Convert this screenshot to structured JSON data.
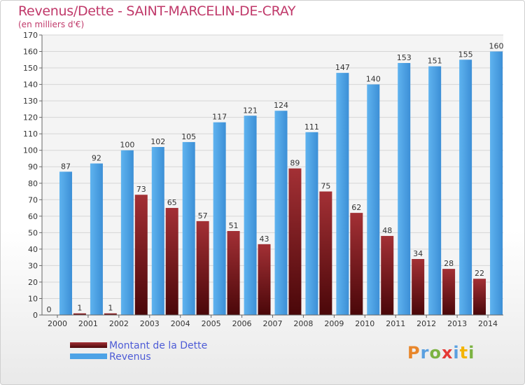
{
  "title": "Revenus/Dette - SAINT-MARCELIN-DE-CRAY",
  "subtitle": "(en milliers d'€)",
  "logo": {
    "text": "Proxiti",
    "colors": [
      "#e8862a",
      "#5aa0e0",
      "#7cb342",
      "#e53935",
      "#5aa0e0",
      "#f4b400",
      "#7cb342"
    ]
  },
  "chart_data": {
    "type": "bar",
    "categories": [
      "2000",
      "2001",
      "2002",
      "2003",
      "2004",
      "2005",
      "2006",
      "2007",
      "2008",
      "2009",
      "2010",
      "2011",
      "2012",
      "2013",
      "2014"
    ],
    "series": [
      {
        "name": "Montant de la Dette",
        "values": [
          0,
          1,
          1,
          73,
          65,
          57,
          51,
          43,
          89,
          75,
          62,
          48,
          34,
          28,
          22
        ],
        "color": "#7a1a1e"
      },
      {
        "name": "Revenus",
        "values": [
          87,
          92,
          100,
          102,
          105,
          117,
          121,
          124,
          111,
          147,
          140,
          153,
          151,
          155,
          160
        ],
        "color": "#4da3e6"
      }
    ],
    "ylim": [
      0,
      170
    ],
    "yticks": [
      0,
      10,
      20,
      30,
      40,
      50,
      60,
      70,
      80,
      90,
      100,
      110,
      120,
      130,
      140,
      150,
      160,
      170
    ],
    "grid": true,
    "legend": "bottom-left"
  }
}
